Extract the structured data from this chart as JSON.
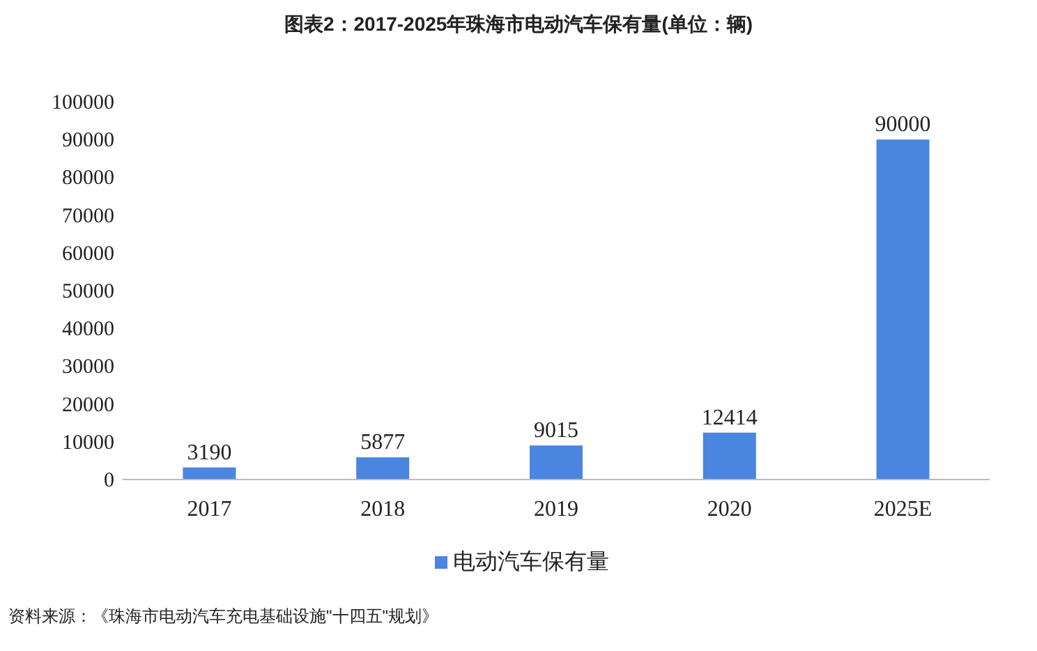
{
  "chart_data": {
    "type": "bar",
    "title": "图表2：2017-2025年珠海市电动汽车保有量(单位：辆)",
    "categories": [
      "2017",
      "2018",
      "2019",
      "2020",
      "2025E"
    ],
    "series": [
      {
        "name": "电动汽车保有量",
        "color": "#4a86e0",
        "values": [
          3190,
          5877,
          9015,
          12414,
          90000
        ]
      }
    ],
    "ylim": [
      0,
      100000
    ],
    "yticks": [
      0,
      10000,
      20000,
      30000,
      40000,
      50000,
      60000,
      70000,
      80000,
      90000,
      100000
    ],
    "data_labels": true,
    "legend": "bottom",
    "grid": false,
    "annotations": [
      "资料来源：《珠海市电动汽车充电基础设施\"十四五\"规划》"
    ]
  }
}
